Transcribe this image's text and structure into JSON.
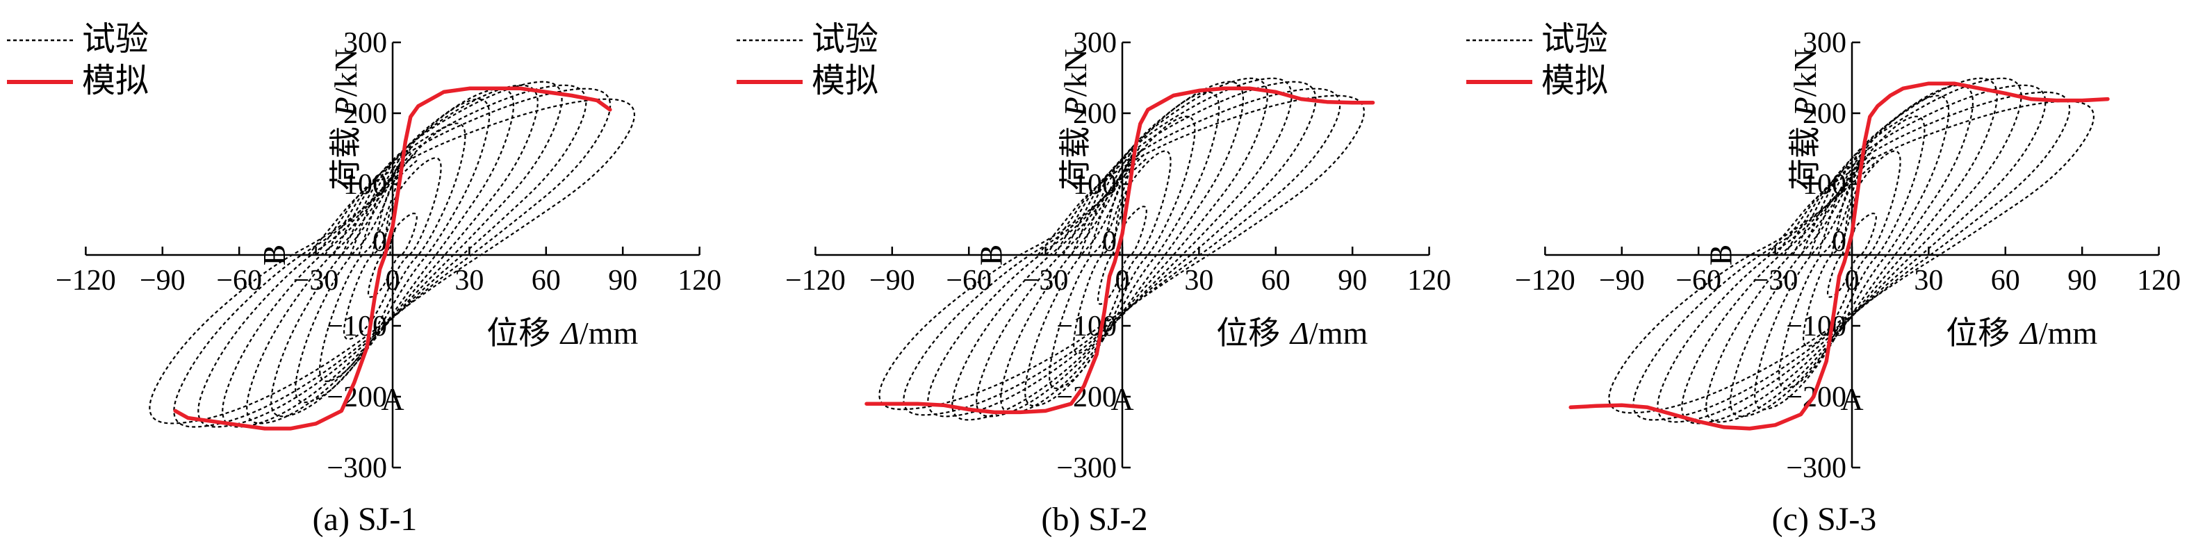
{
  "legend": {
    "test": "试验",
    "sim": "模拟"
  },
  "axes": {
    "ylabel_prefix": "荷载",
    "ylabel_symbol": "P",
    "ylabel_unit": "/kN",
    "xlabel_prefix": "位移",
    "xlabel_symbol": "Δ",
    "xlabel_unit": "/mm"
  },
  "colors": {
    "test": "#000000",
    "sim": "#e8202a"
  },
  "chart_data": [
    {
      "type": "line",
      "caption": "(a) SJ-1",
      "xlim": [
        -120,
        120
      ],
      "ylim": [
        -300,
        300
      ],
      "xticks": [
        -120,
        -90,
        -60,
        -30,
        0,
        30,
        60,
        90,
        120
      ],
      "yticks": [
        -300,
        -200,
        -100,
        0,
        100,
        200,
        300
      ],
      "point_labels": [
        {
          "text": "A",
          "x": 0,
          "y": -150
        },
        {
          "text": "B",
          "x": -40,
          "y": 0
        }
      ],
      "loop_peaks": [
        [
          10,
          60,
          -10,
          -60
        ],
        [
          20,
          140,
          -20,
          -120
        ],
        [
          30,
          190,
          -30,
          -180
        ],
        [
          40,
          225,
          -40,
          -210
        ],
        [
          50,
          240,
          -50,
          -230
        ],
        [
          60,
          245,
          -60,
          -240
        ],
        [
          70,
          250,
          -70,
          -245
        ],
        [
          80,
          245,
          -80,
          -245
        ],
        [
          90,
          240,
          -90,
          -245
        ],
        [
          100,
          225,
          -100,
          -240
        ]
      ],
      "series": [
        {
          "name": "模拟",
          "x": [
            -85,
            -80,
            -70,
            -60,
            -50,
            -40,
            -30,
            -20,
            -15,
            -10,
            -7,
            -5,
            -3,
            0,
            3,
            5,
            7,
            10,
            15,
            20,
            30,
            40,
            50,
            60,
            70,
            80,
            85
          ],
          "y": [
            -220,
            -230,
            -235,
            -240,
            -245,
            -245,
            -238,
            -220,
            -180,
            -130,
            -60,
            -20,
            0,
            40,
            110,
            160,
            195,
            210,
            220,
            230,
            235,
            235,
            235,
            230,
            225,
            218,
            205
          ]
        }
      ]
    },
    {
      "type": "line",
      "caption": "(b) SJ-2",
      "xlim": [
        -120,
        120
      ],
      "ylim": [
        -300,
        300
      ],
      "xticks": [
        -120,
        -90,
        -60,
        -30,
        0,
        30,
        60,
        90,
        120
      ],
      "yticks": [
        -300,
        -200,
        -100,
        0,
        100,
        200,
        300
      ],
      "point_labels": [
        {
          "text": "A",
          "x": 0,
          "y": -150
        },
        {
          "text": "B",
          "x": -45,
          "y": 0
        }
      ],
      "loop_peaks": [
        [
          10,
          70,
          -10,
          -70
        ],
        [
          20,
          150,
          -20,
          -140
        ],
        [
          30,
          200,
          -30,
          -190
        ],
        [
          40,
          235,
          -40,
          -215
        ],
        [
          50,
          250,
          -50,
          -225
        ],
        [
          60,
          255,
          -60,
          -230
        ],
        [
          70,
          255,
          -70,
          -235
        ],
        [
          80,
          250,
          -80,
          -230
        ],
        [
          90,
          240,
          -90,
          -228
        ],
        [
          100,
          230,
          -100,
          -220
        ]
      ],
      "series": [
        {
          "name": "模拟",
          "x": [
            -100,
            -90,
            -80,
            -70,
            -60,
            -50,
            -40,
            -30,
            -20,
            -15,
            -10,
            -7,
            -5,
            -3,
            0,
            3,
            5,
            7,
            10,
            15,
            20,
            30,
            40,
            50,
            60,
            70,
            80,
            90,
            98
          ],
          "y": [
            -210,
            -210,
            -210,
            -212,
            -218,
            -222,
            -222,
            -220,
            -210,
            -185,
            -140,
            -80,
            -30,
            -10,
            30,
            100,
            150,
            185,
            205,
            215,
            225,
            232,
            235,
            235,
            230,
            220,
            216,
            215,
            215
          ]
        }
      ]
    },
    {
      "type": "line",
      "caption": "(c) SJ-3",
      "xlim": [
        -120,
        120
      ],
      "ylim": [
        -300,
        300
      ],
      "xticks": [
        -120,
        -90,
        -60,
        -30,
        0,
        30,
        60,
        90,
        120
      ],
      "yticks": [
        -300,
        -200,
        -100,
        0,
        100,
        200,
        300
      ],
      "point_labels": [
        {
          "text": "A",
          "x": 0,
          "y": -150
        },
        {
          "text": "B",
          "x": -45,
          "y": 0
        }
      ],
      "loop_peaks": [
        [
          10,
          60,
          -10,
          -60
        ],
        [
          20,
          150,
          -20,
          -130
        ],
        [
          30,
          200,
          -30,
          -190
        ],
        [
          40,
          230,
          -40,
          -220
        ],
        [
          50,
          245,
          -50,
          -230
        ],
        [
          60,
          255,
          -60,
          -238
        ],
        [
          70,
          255,
          -70,
          -240
        ],
        [
          80,
          245,
          -80,
          -238
        ],
        [
          90,
          235,
          -90,
          -235
        ],
        [
          100,
          222,
          -100,
          -225
        ]
      ],
      "series": [
        {
          "name": "模拟",
          "x": [
            -110,
            -100,
            -90,
            -80,
            -70,
            -60,
            -50,
            -40,
            -30,
            -20,
            -15,
            -10,
            -7,
            -5,
            -3,
            0,
            3,
            5,
            7,
            10,
            15,
            20,
            30,
            40,
            50,
            60,
            70,
            80,
            90,
            100
          ],
          "y": [
            -215,
            -213,
            -212,
            -215,
            -225,
            -235,
            -243,
            -245,
            -240,
            -225,
            -200,
            -150,
            -80,
            -30,
            -10,
            30,
            110,
            160,
            195,
            210,
            225,
            235,
            242,
            242,
            235,
            228,
            220,
            218,
            218,
            220
          ]
        }
      ]
    }
  ]
}
